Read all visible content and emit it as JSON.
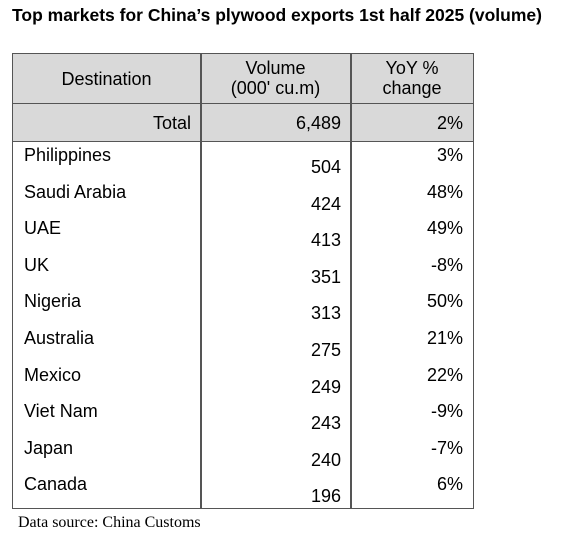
{
  "title": "Top markets for China’s plywood exports 1st half 2025 (volume)",
  "headers": {
    "destination": "Destination",
    "volume_line1": "Volume",
    "volume_line2": "(000' cu.m)",
    "yoy_line1": "YoY %",
    "yoy_line2": "change"
  },
  "total": {
    "label": "Total",
    "volume": "6,489",
    "yoy": "2%"
  },
  "rows": [
    {
      "destination": "Philippines",
      "volume": "504",
      "yoy": "3%"
    },
    {
      "destination": "Saudi Arabia",
      "volume": "424",
      "yoy": "48%"
    },
    {
      "destination": "UAE",
      "volume": "413",
      "yoy": "49%"
    },
    {
      "destination": "UK",
      "volume": "351",
      "yoy": "-8%"
    },
    {
      "destination": "Nigeria",
      "volume": "313",
      "yoy": "50%"
    },
    {
      "destination": "Australia",
      "volume": "275",
      "yoy": "21%"
    },
    {
      "destination": "Mexico",
      "volume": "249",
      "yoy": "22%"
    },
    {
      "destination": "Viet Nam",
      "volume": "243",
      "yoy": "-9%"
    },
    {
      "destination": "Japan",
      "volume": "240",
      "yoy": "-7%"
    },
    {
      "destination": "Canada",
      "volume": "196",
      "yoy": "6%"
    }
  ],
  "source": "Data source: China Customs",
  "colors": {
    "header_bg": "#d9d9d9",
    "border": "#555555"
  }
}
